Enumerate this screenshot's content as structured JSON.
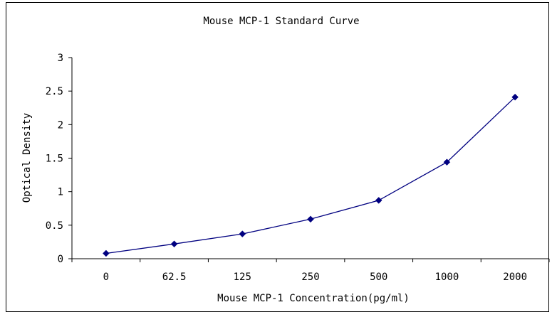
{
  "chart_data": {
    "type": "line",
    "title": "Mouse MCP-1 Standard Curve",
    "xlabel": "Mouse MCP-1 Concentration(pg/ml)",
    "ylabel": "Optical Density",
    "categories": [
      "0",
      "62.5",
      "125",
      "250",
      "500",
      "1000",
      "2000"
    ],
    "series": [
      {
        "values": [
          0.08,
          0.22,
          0.37,
          0.59,
          0.87,
          1.44,
          2.41
        ]
      }
    ],
    "ylim": [
      0,
      3
    ],
    "yticks": [
      "0",
      "0.5",
      "1",
      "1.5",
      "2",
      "2.5",
      "3"
    ],
    "grid": false,
    "legend": "none",
    "colors": {
      "series": "#000080",
      "axis": "#000000"
    }
  }
}
